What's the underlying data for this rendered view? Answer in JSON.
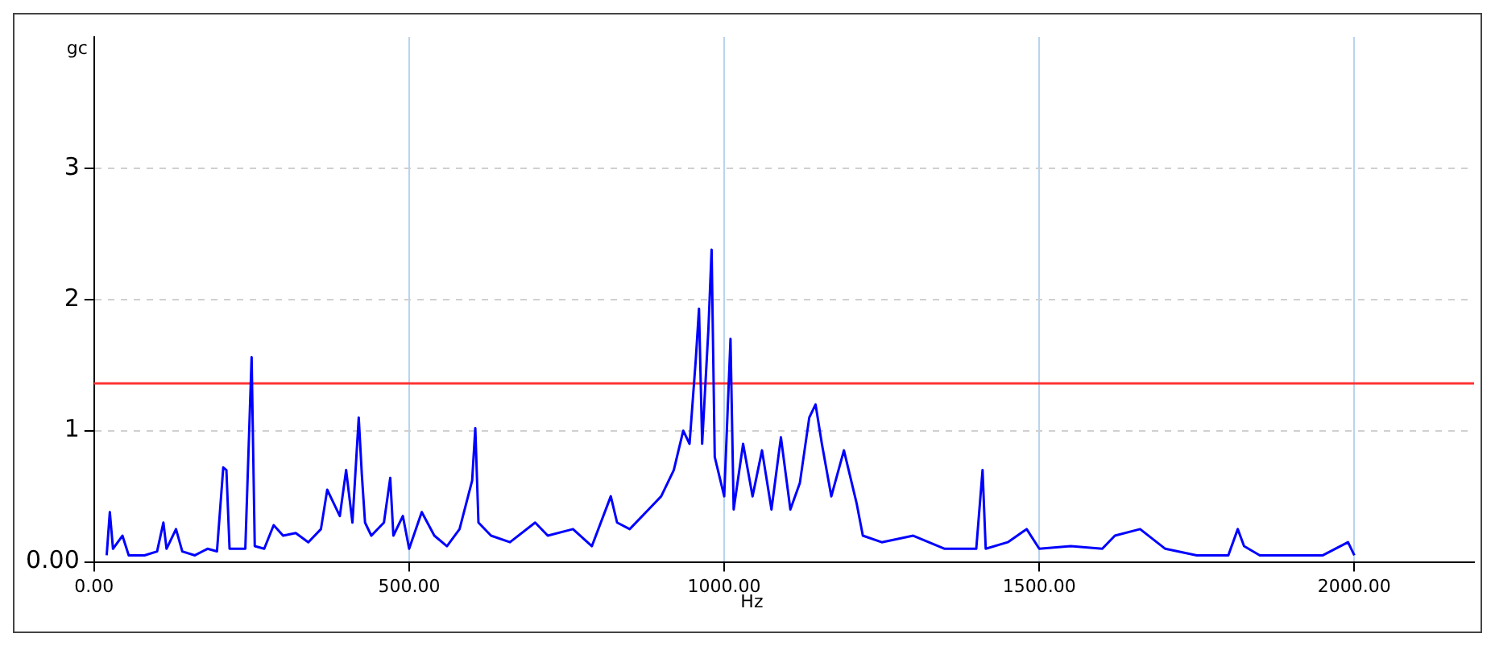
{
  "chart_data": {
    "type": "line",
    "xlabel": "Hz",
    "ylabel": "gc",
    "x": [
      20,
      25,
      30,
      45,
      55,
      80,
      100,
      110,
      115,
      130,
      140,
      160,
      180,
      195,
      205,
      210,
      215,
      240,
      250,
      255,
      270,
      285,
      300,
      320,
      340,
      360,
      370,
      380,
      390,
      400,
      410,
      420,
      425,
      430,
      440,
      460,
      470,
      475,
      490,
      500,
      520,
      540,
      560,
      580,
      600,
      605,
      610,
      630,
      660,
      700,
      720,
      760,
      790,
      820,
      830,
      850,
      880,
      900,
      920,
      935,
      945,
      955,
      960,
      965,
      975,
      980,
      985,
      1000,
      1010,
      1015,
      1030,
      1045,
      1060,
      1075,
      1090,
      1105,
      1120,
      1135,
      1145,
      1155,
      1170,
      1190,
      1210,
      1220,
      1250,
      1300,
      1350,
      1400,
      1410,
      1415,
      1450,
      1480,
      1500,
      1550,
      1600,
      1620,
      1660,
      1700,
      1750,
      1800,
      1815,
      1825,
      1850,
      1900,
      1950,
      1990,
      2000
    ],
    "series": [
      {
        "color": "#0000ff",
        "values": [
          0.05,
          0.38,
          0.1,
          0.2,
          0.05,
          0.05,
          0.08,
          0.3,
          0.1,
          0.25,
          0.08,
          0.05,
          0.1,
          0.08,
          0.72,
          0.7,
          0.1,
          0.1,
          1.56,
          0.12,
          0.1,
          0.28,
          0.2,
          0.22,
          0.15,
          0.25,
          0.55,
          0.45,
          0.35,
          0.7,
          0.3,
          1.1,
          0.66,
          0.3,
          0.2,
          0.3,
          0.64,
          0.2,
          0.35,
          0.1,
          0.38,
          0.2,
          0.12,
          0.25,
          0.62,
          1.02,
          0.3,
          0.2,
          0.15,
          0.3,
          0.2,
          0.25,
          0.12,
          0.5,
          0.3,
          0.25,
          0.4,
          0.5,
          0.7,
          1.0,
          0.9,
          1.55,
          1.93,
          0.9,
          1.78,
          2.38,
          0.8,
          0.5,
          1.7,
          0.4,
          0.9,
          0.5,
          0.85,
          0.4,
          0.95,
          0.4,
          0.6,
          1.1,
          1.2,
          0.9,
          0.5,
          0.85,
          0.45,
          0.2,
          0.15,
          0.2,
          0.1,
          0.1,
          0.7,
          0.1,
          0.15,
          0.25,
          0.1,
          0.12,
          0.1,
          0.2,
          0.25,
          0.1,
          0.05,
          0.05,
          0.25,
          0.12,
          0.05,
          0.05,
          0.05,
          0.15,
          0.05
        ]
      }
    ],
    "xlim": [
      0,
      2190
    ],
    "xticks": [
      {
        "value": 0,
        "label": "0.00"
      },
      {
        "value": 500,
        "label": "500.00"
      },
      {
        "value": 1000,
        "label": "1000.00"
      },
      {
        "value": 1500,
        "label": "1500.00"
      },
      {
        "value": 2000,
        "label": "2000.00"
      }
    ],
    "ylim": [
      0,
      4
    ],
    "yticks": [
      {
        "value": 0,
        "label": "0.00"
      },
      1,
      2,
      3
    ],
    "ref_lines": [
      {
        "axis": "y",
        "value": 1.36,
        "color": "#ff3333"
      }
    ],
    "grid": true,
    "legend": false,
    "marker": "none",
    "line_style": "solid"
  }
}
